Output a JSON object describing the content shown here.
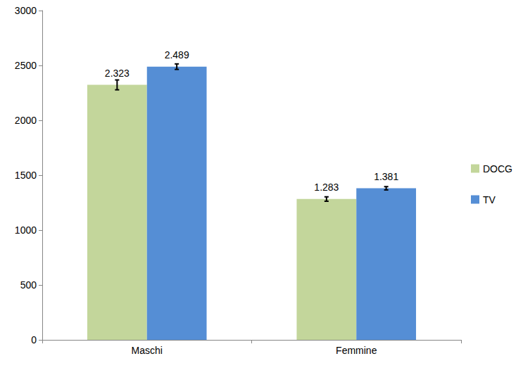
{
  "chart_data": {
    "type": "bar",
    "categories": [
      "Maschi",
      "Femmine"
    ],
    "series": [
      {
        "name": "DOCG",
        "color": "#c3d69b",
        "values": [
          2323,
          1283
        ],
        "value_labels": [
          "2.323",
          "1.283"
        ],
        "errors": [
          45,
          20
        ]
      },
      {
        "name": "TV",
        "color": "#558ed5",
        "values": [
          2489,
          1381
        ],
        "value_labels": [
          "2.489",
          "1.381"
        ],
        "errors": [
          25,
          15
        ]
      }
    ],
    "ylim": [
      0,
      3000
    ],
    "yticks": [
      0,
      500,
      1000,
      1500,
      2000,
      2500,
      3000
    ],
    "grid": false,
    "legend": "right",
    "data_labels": true
  }
}
